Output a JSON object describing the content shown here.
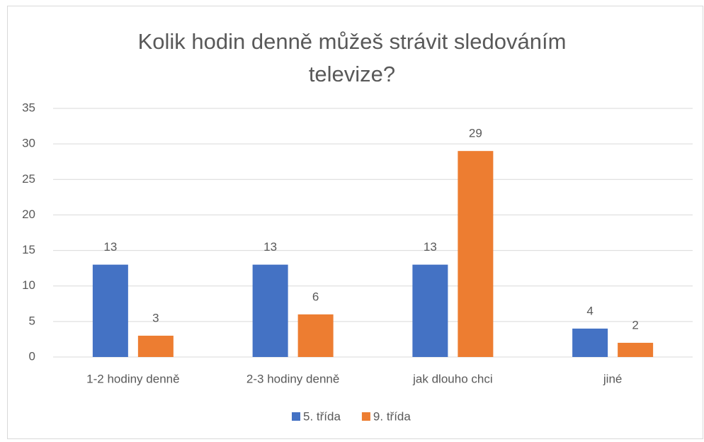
{
  "chart_data": {
    "type": "bar",
    "title": "Kolik hodin denně můžeš strávit sledováním televize?",
    "categories": [
      "1-2 hodiny denně",
      "2-3 hodiny denně",
      "jak dlouho chci",
      "jiné"
    ],
    "series": [
      {
        "name": "5. třída",
        "color": "#4472c4",
        "values": [
          13,
          13,
          13,
          4
        ]
      },
      {
        "name": "9. třída",
        "color": "#ed7d31",
        "values": [
          3,
          6,
          29,
          2
        ]
      }
    ],
    "ylim": [
      0,
      35
    ],
    "yticks": [
      0,
      5,
      10,
      15,
      20,
      25,
      30,
      35
    ],
    "grid": true,
    "legend": "bottom"
  }
}
